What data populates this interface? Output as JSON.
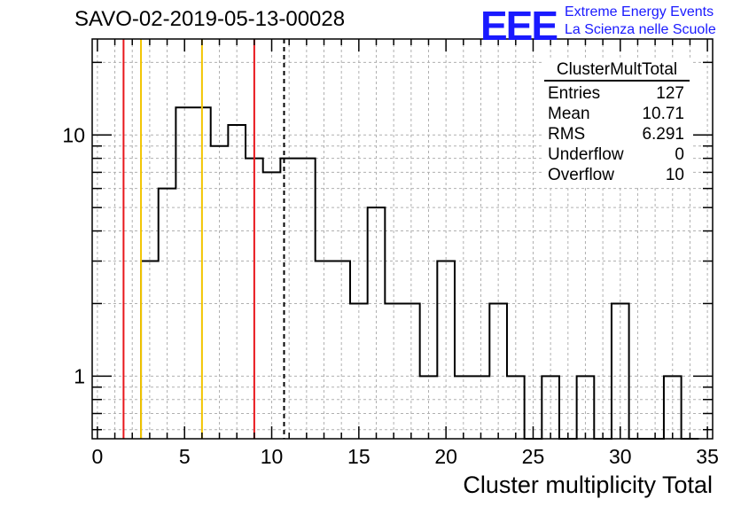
{
  "chart_data": {
    "type": "step-histogram",
    "title": "SAVO-02-2019-05-13-00028",
    "xlabel": "Cluster multiplicity Total",
    "ylabel": "",
    "xlim": [
      -0.3,
      35.3
    ],
    "ylim": [
      0.55,
      25
    ],
    "yscale": "log",
    "grid": true,
    "x_ticks": [
      0,
      5,
      10,
      15,
      20,
      25,
      30,
      35
    ],
    "y_ticks": [
      1,
      10
    ],
    "bin_width": 1,
    "bins": [
      {
        "x0": 2.5,
        "value": 3
      },
      {
        "x0": 3.5,
        "value": 6
      },
      {
        "x0": 4.5,
        "value": 13
      },
      {
        "x0": 5.5,
        "value": 13
      },
      {
        "x0": 6.5,
        "value": 9
      },
      {
        "x0": 7.5,
        "value": 11
      },
      {
        "x0": 8.5,
        "value": 8
      },
      {
        "x0": 9.5,
        "value": 7
      },
      {
        "x0": 10.5,
        "value": 8
      },
      {
        "x0": 11.5,
        "value": 8
      },
      {
        "x0": 12.5,
        "value": 3
      },
      {
        "x0": 13.5,
        "value": 3
      },
      {
        "x0": 14.5,
        "value": 2
      },
      {
        "x0": 15.5,
        "value": 5
      },
      {
        "x0": 16.5,
        "value": 2
      },
      {
        "x0": 17.5,
        "value": 2
      },
      {
        "x0": 18.5,
        "value": 1
      },
      {
        "x0": 19.5,
        "value": 3
      },
      {
        "x0": 20.5,
        "value": 1
      },
      {
        "x0": 21.5,
        "value": 1
      },
      {
        "x0": 22.5,
        "value": 2
      },
      {
        "x0": 23.5,
        "value": 1
      },
      {
        "x0": 24.5,
        "value": 0
      },
      {
        "x0": 25.5,
        "value": 1
      },
      {
        "x0": 26.5,
        "value": 0
      },
      {
        "x0": 27.5,
        "value": 1
      },
      {
        "x0": 28.5,
        "value": 0
      },
      {
        "x0": 29.5,
        "value": 2
      },
      {
        "x0": 30.5,
        "value": 0
      },
      {
        "x0": 31.5,
        "value": 0
      },
      {
        "x0": 32.5,
        "value": 1
      },
      {
        "x0": 33.5,
        "value": 0
      }
    ],
    "vertical_lines": [
      {
        "x": 1.5,
        "color": "#e8161b",
        "style": "solid"
      },
      {
        "x": 2.5,
        "color": "#f2c500",
        "style": "solid"
      },
      {
        "x": 6.0,
        "color": "#f2c500",
        "style": "solid"
      },
      {
        "x": 9.0,
        "color": "#e8161b",
        "style": "solid"
      },
      {
        "x": 10.71,
        "color": "#000000",
        "style": "dashed"
      }
    ],
    "stats_box": {
      "name": "ClusterMultTotal",
      "rows": [
        {
          "label": "Entries",
          "value": "127"
        },
        {
          "label": "Mean",
          "value": "10.71"
        },
        {
          "label": "RMS",
          "value": "6.291"
        },
        {
          "label": "Underflow",
          "value": "0"
        },
        {
          "label": "Overflow",
          "value": "10"
        }
      ]
    }
  },
  "logo": {
    "mark": "EEE",
    "line1": "Extreme Energy Events",
    "line2": "La Scienza nelle Scuole",
    "color": "#1a1aff"
  }
}
